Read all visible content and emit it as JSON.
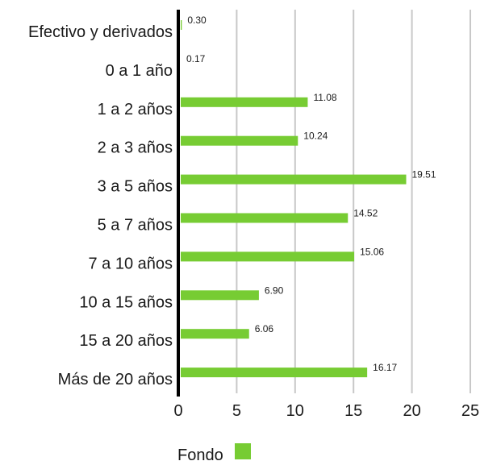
{
  "chart_data": {
    "type": "bar",
    "orientation": "horizontal",
    "categories": [
      "Efectivo y derivados",
      "0 a 1 año",
      "1 a 2 años",
      "2 a 3 años",
      "3 a 5 años",
      "5 a 7 años",
      "7 a 10 años",
      "10 a 15 años",
      "15 a 20 años",
      "Más de 20 años"
    ],
    "series": [
      {
        "name": "Fondo",
        "values": [
          0.3,
          0.17,
          11.08,
          10.24,
          19.51,
          14.52,
          15.06,
          6.9,
          6.06,
          16.17
        ],
        "labels": [
          "0.30",
          "0.17",
          "11.08",
          "10.24",
          "19.51",
          "14.52",
          "15.06",
          "6.90",
          "6.06",
          "16.17"
        ],
        "color": "#77cc33"
      }
    ],
    "xlim": [
      0,
      25
    ],
    "xticks": [
      0,
      5,
      10,
      15,
      20,
      25
    ],
    "xtick_labels": [
      "0",
      "5",
      "10",
      "15",
      "20",
      "25"
    ],
    "grid": "vertical",
    "grid_color": "#c8c8c8",
    "axis_color": "#000000",
    "legend_position": "bottom-center",
    "title": "",
    "xlabel": "",
    "ylabel": ""
  }
}
